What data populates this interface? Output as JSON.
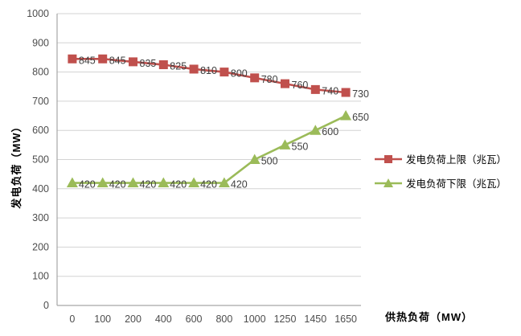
{
  "chart_data": {
    "type": "line",
    "title": "",
    "xlabel": "供热负荷（MW）",
    "ylabel": "发电负荷（MW）",
    "categories": [
      "0",
      "100",
      "200",
      "400",
      "600",
      "800",
      "1000",
      "1250",
      "1450",
      "1650"
    ],
    "series": [
      {
        "name": "发电负荷上限（兆瓦）",
        "values": [
          845,
          845,
          835,
          825,
          810,
          800,
          780,
          760,
          740,
          730
        ],
        "color": "#C0504D",
        "marker": "square"
      },
      {
        "name": "发电负荷下限（兆瓦）",
        "values": [
          420,
          420,
          420,
          420,
          420,
          420,
          500,
          550,
          600,
          650
        ],
        "color": "#9BBB59",
        "marker": "triangle"
      }
    ],
    "ylim": [
      0,
      1000
    ],
    "yticks": [
      0,
      100,
      200,
      300,
      400,
      500,
      600,
      700,
      800,
      900,
      1000
    ],
    "grid": "horizontal",
    "legend_position": "right",
    "data_labels": true
  },
  "style": {
    "background": "#FFFFFF",
    "grid_color": "#D3D3D3",
    "axis_color": "#A6A6A6",
    "tick_color": "#4D4D4D",
    "label_color": "#3F3F3F"
  }
}
